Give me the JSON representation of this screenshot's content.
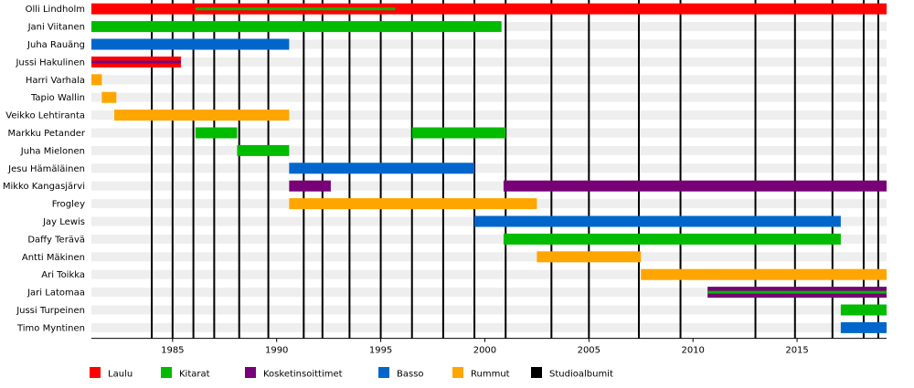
{
  "chart_data": {
    "type": "timeline",
    "title": "",
    "xlabel": "",
    "ylabel": "",
    "xlim": [
      1981.1,
      2019.3
    ],
    "x_ticks": [
      1985,
      1990,
      1995,
      2000,
      2005,
      2010,
      2015
    ],
    "roles": [
      {
        "key": "vocals",
        "label": "Laulu",
        "color": "#ff0000"
      },
      {
        "key": "guitars",
        "label": "Kitarat",
        "color": "#00bb00"
      },
      {
        "key": "keyboards",
        "label": "Kosketinsoittimet",
        "color": "#770077"
      },
      {
        "key": "bass",
        "label": "Basso",
        "color": "#0066cc"
      },
      {
        "key": "drums",
        "label": "Rummut",
        "color": "#ffa500"
      },
      {
        "key": "albums",
        "label": "Studioalbumit",
        "color": "#000000"
      }
    ],
    "members": [
      {
        "name": "Olli Lindholm",
        "bars": [
          {
            "role": "vocals",
            "start": 1981.1,
            "end": 2019.3
          }
        ],
        "secondary": [
          {
            "role": "guitars",
            "start": 1986.1,
            "end": 1995.7
          }
        ]
      },
      {
        "name": "Jani Viitanen",
        "bars": [
          {
            "role": "guitars",
            "start": 1981.1,
            "end": 2000.8
          }
        ],
        "secondary": []
      },
      {
        "name": "Juha Rauäng",
        "bars": [
          {
            "role": "bass",
            "start": 1981.1,
            "end": 1990.6
          }
        ],
        "secondary": []
      },
      {
        "name": "Jussi Hakulinen",
        "bars": [
          {
            "role": "vocals",
            "start": 1981.1,
            "end": 1985.4
          }
        ],
        "secondary": [
          {
            "role": "keyboards",
            "start": 1981.1,
            "end": 1985.4
          }
        ]
      },
      {
        "name": "Harri Varhala",
        "bars": [
          {
            "role": "drums",
            "start": 1981.1,
            "end": 1981.6
          }
        ],
        "secondary": []
      },
      {
        "name": "Tapio Wallin",
        "bars": [
          {
            "role": "drums",
            "start": 1981.6,
            "end": 1982.3
          }
        ],
        "secondary": []
      },
      {
        "name": "Veikko Lehtiranta",
        "bars": [
          {
            "role": "drums",
            "start": 1982.2,
            "end": 1990.6
          }
        ],
        "secondary": []
      },
      {
        "name": "Markku Petander",
        "bars": [
          {
            "role": "guitars",
            "start": 1986.1,
            "end": 1988.1
          },
          {
            "role": "guitars",
            "start": 1996.5,
            "end": 2001.0
          }
        ],
        "secondary": []
      },
      {
        "name": "Juha Mielonen",
        "bars": [
          {
            "role": "guitars",
            "start": 1988.1,
            "end": 1990.6
          }
        ],
        "secondary": []
      },
      {
        "name": "Jesu Hämäläinen",
        "bars": [
          {
            "role": "bass",
            "start": 1990.6,
            "end": 1999.5
          }
        ],
        "secondary": []
      },
      {
        "name": "Mikko Kangasjärvi",
        "bars": [
          {
            "role": "keyboards",
            "start": 1990.6,
            "end": 1992.6
          },
          {
            "role": "keyboards",
            "start": 2000.9,
            "end": 2019.3
          }
        ],
        "secondary": []
      },
      {
        "name": "Frogley",
        "bars": [
          {
            "role": "drums",
            "start": 1990.6,
            "end": 2002.5
          }
        ],
        "secondary": []
      },
      {
        "name": "Jay Lewis",
        "bars": [
          {
            "role": "bass",
            "start": 1999.5,
            "end": 2017.1
          }
        ],
        "secondary": []
      },
      {
        "name": "Daffy Terävä",
        "bars": [
          {
            "role": "guitars",
            "start": 2000.9,
            "end": 2017.1
          }
        ],
        "secondary": []
      },
      {
        "name": "Antti Mäkinen",
        "bars": [
          {
            "role": "drums",
            "start": 2002.5,
            "end": 2007.5
          }
        ],
        "secondary": []
      },
      {
        "name": "Ari Toikka",
        "bars": [
          {
            "role": "drums",
            "start": 2007.5,
            "end": 2019.3
          }
        ],
        "secondary": []
      },
      {
        "name": "Jari Latomaa",
        "bars": [
          {
            "role": "keyboards",
            "start": 2010.7,
            "end": 2019.3
          }
        ],
        "secondary": [
          {
            "role": "guitars",
            "start": 2010.7,
            "end": 2019.3
          }
        ]
      },
      {
        "name": "Jussi Turpeinen",
        "bars": [
          {
            "role": "guitars",
            "start": 2017.1,
            "end": 2019.3
          }
        ],
        "secondary": []
      },
      {
        "name": "Timo Myntinen",
        "bars": [
          {
            "role": "bass",
            "start": 2017.1,
            "end": 2019.3
          }
        ],
        "secondary": []
      }
    ],
    "albums": [
      1984.0,
      1985.0,
      1986.0,
      1987.0,
      1988.2,
      1989.6,
      1991.3,
      1992.2,
      1993.5,
      1995.0,
      1996.5,
      1998.0,
      1999.5,
      2001.0,
      2003.2,
      2005.0,
      2007.4,
      2009.4,
      2013.0,
      2014.9,
      2016.7,
      2018.2,
      2018.9
    ],
    "legend_position": "bottom"
  }
}
